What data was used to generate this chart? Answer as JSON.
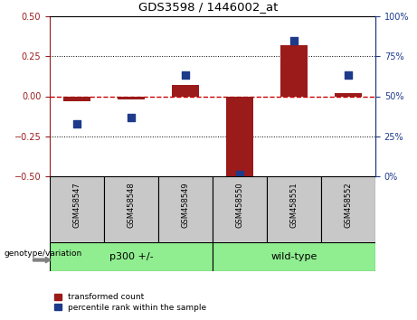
{
  "title": "GDS3598 / 1446002_at",
  "samples": [
    "GSM458547",
    "GSM458548",
    "GSM458549",
    "GSM458550",
    "GSM458551",
    "GSM458552"
  ],
  "transformed_count": [
    -0.03,
    -0.02,
    0.07,
    -0.5,
    0.32,
    0.02
  ],
  "percentile_rank": [
    33,
    37,
    63,
    1,
    85,
    63
  ],
  "ylim_left": [
    -0.5,
    0.5
  ],
  "ylim_right": [
    0,
    100
  ],
  "yticks_left": [
    -0.5,
    -0.25,
    0,
    0.25,
    0.5
  ],
  "yticks_right": [
    0,
    25,
    50,
    75,
    100
  ],
  "dotted_lines": [
    -0.25,
    0.25
  ],
  "bar_color": "#9B1A1A",
  "scatter_color": "#1E3A8A",
  "hline_color": "#CC0000",
  "group1_label": "p300 +/-",
  "group2_label": "wild-type",
  "group1_count": 3,
  "group2_count": 3,
  "group_bg_color": "#90EE90",
  "sample_bg_color": "#C8C8C8",
  "legend_red_label": "transformed count",
  "legend_blue_label": "percentile rank within the sample",
  "genotype_label": "genotype/variation",
  "bar_width": 0.5,
  "scatter_size": 35
}
